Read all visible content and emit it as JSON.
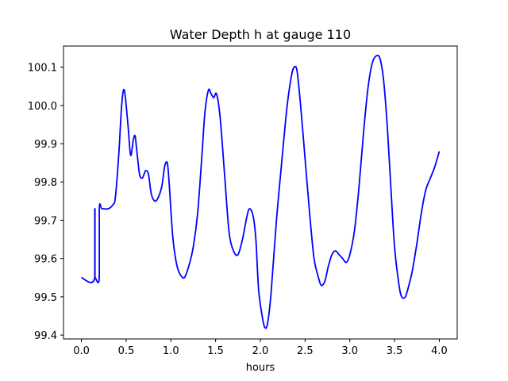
{
  "chart_data": {
    "type": "line",
    "title": "Water Depth h at gauge 110",
    "xlabel": "hours",
    "ylabel": "",
    "xlim": [
      -0.2,
      4.2
    ],
    "ylim": [
      99.39,
      100.155
    ],
    "xticks": [
      0.0,
      0.5,
      1.0,
      1.5,
      2.0,
      2.5,
      3.0,
      3.5,
      4.0
    ],
    "xtick_labels": [
      "0.0",
      "0.5",
      "1.0",
      "1.5",
      "2.0",
      "2.5",
      "3.0",
      "3.5",
      "4.0"
    ],
    "yticks": [
      99.4,
      99.5,
      99.6,
      99.7,
      99.8,
      99.9,
      100.0,
      100.1
    ],
    "ytick_labels": [
      "99.4",
      "99.5",
      "99.6",
      "99.7",
      "99.8",
      "99.9",
      "100.0",
      "100.1"
    ],
    "grid": false,
    "series": [
      {
        "color": "#0000ff",
        "x": [
          0.0,
          0.15,
          0.15,
          0.152,
          0.152,
          0.155,
          0.155,
          0.2,
          0.2,
          0.23,
          0.3,
          0.35,
          0.38,
          0.42,
          0.45,
          0.48,
          0.52,
          0.55,
          0.58,
          0.6,
          0.62,
          0.65,
          0.68,
          0.7,
          0.72,
          0.75,
          0.78,
          0.82,
          0.86,
          0.9,
          0.93,
          0.96,
          0.98,
          1.02,
          1.06,
          1.1,
          1.15,
          1.2,
          1.25,
          1.3,
          1.35,
          1.38,
          1.42,
          1.45,
          1.48,
          1.51,
          1.55,
          1.6,
          1.65,
          1.7,
          1.75,
          1.8,
          1.85,
          1.88,
          1.92,
          1.95,
          1.98,
          2.02,
          2.05,
          2.08,
          2.12,
          2.18,
          2.25,
          2.3,
          2.35,
          2.38,
          2.41,
          2.45,
          2.5,
          2.55,
          2.6,
          2.65,
          2.68,
          2.72,
          2.76,
          2.8,
          2.84,
          2.88,
          2.92,
          2.96,
          3.0,
          3.05,
          3.1,
          3.15,
          3.2,
          3.25,
          3.3,
          3.34,
          3.38,
          3.42,
          3.46,
          3.5,
          3.55,
          3.58,
          3.62,
          3.66,
          3.7,
          3.75,
          3.8,
          3.85,
          3.9,
          3.95,
          4.0
        ],
        "y": [
          99.55,
          99.55,
          99.73,
          99.73,
          99.55,
          99.55,
          99.55,
          99.55,
          99.73,
          99.73,
          99.73,
          99.74,
          99.76,
          99.88,
          100.0,
          100.04,
          99.95,
          99.87,
          99.91,
          99.92,
          99.88,
          99.82,
          99.81,
          99.82,
          99.83,
          99.82,
          99.77,
          99.75,
          99.76,
          99.79,
          99.84,
          99.85,
          99.8,
          99.66,
          99.59,
          99.56,
          99.55,
          99.58,
          99.63,
          99.72,
          99.88,
          99.98,
          100.04,
          100.03,
          100.02,
          100.03,
          99.97,
          99.82,
          99.67,
          99.62,
          99.61,
          99.65,
          99.71,
          99.73,
          99.71,
          99.65,
          99.52,
          99.45,
          99.42,
          99.43,
          99.51,
          99.7,
          99.88,
          100.0,
          100.08,
          100.1,
          100.09,
          100.0,
          99.86,
          99.72,
          99.6,
          99.55,
          99.53,
          99.54,
          99.58,
          99.61,
          99.62,
          99.61,
          99.6,
          99.59,
          99.61,
          99.67,
          99.78,
          99.92,
          100.04,
          100.11,
          100.13,
          100.12,
          100.06,
          99.94,
          99.78,
          99.63,
          99.53,
          99.5,
          99.5,
          99.53,
          99.57,
          99.64,
          99.72,
          99.78,
          99.81,
          99.84,
          99.88
        ]
      }
    ]
  }
}
